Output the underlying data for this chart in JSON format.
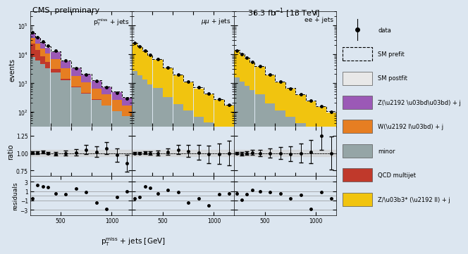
{
  "background_color": "#dce6f0",
  "title_left": "CMS  preliminary",
  "title_right": "36.3 fb$^{-1}$ [13 TeV]",
  "xlabel": "p$^{\\rm miss}_{\\rm T}$ + jets [GeV]",
  "panel_labels": [
    "p$_{\\rm T}^{\\rm miss}$ + jets",
    "$\\mu\\mu$ + jets",
    "ee + jets"
  ],
  "colors": {
    "Z_vv": "#9b59b6",
    "W_lv": "#e67e22",
    "minor": "#95a5a6",
    "QCD": "#c0392b",
    "Z_ll": "#f1c40f",
    "data": "#000000"
  },
  "xbins": [
    200,
    250,
    300,
    350,
    400,
    500,
    600,
    700,
    800,
    900,
    1000,
    1100,
    1200
  ],
  "panel0": {
    "Z_vv": [
      18000,
      14000,
      10000,
      7500,
      5500,
      2800,
      1600,
      950,
      580,
      360,
      230,
      150
    ],
    "W_lv": [
      12000,
      9000,
      7000,
      5000,
      3500,
      1800,
      1000,
      600,
      370,
      230,
      150,
      95
    ],
    "minor": [
      8000,
      6000,
      4500,
      3200,
      2300,
      1200,
      700,
      420,
      260,
      160,
      105,
      70
    ],
    "QCD": [
      15000,
      8000,
      4000,
      2000,
      800,
      200,
      50,
      20,
      8,
      3,
      1,
      1
    ],
    "Z_ll": [
      0,
      0,
      0,
      0,
      0,
      0,
      0,
      0,
      0,
      0,
      0,
      0
    ],
    "data": [
      55000,
      38000,
      27000,
      19000,
      13000,
      6000,
      3200,
      1900,
      1150,
      700,
      440,
      280
    ],
    "data_err_lo": [
      350,
      260,
      200,
      165,
      140,
      95,
      65,
      50,
      40,
      31,
      25,
      20
    ],
    "data_err_hi": [
      370,
      270,
      210,
      170,
      145,
      98,
      67,
      52,
      41,
      32,
      26,
      21
    ],
    "ratio": [
      1.01,
      1.01,
      1.02,
      1.0,
      0.99,
      1.0,
      1.01,
      1.05,
      1.02,
      1.07,
      0.97,
      0.85
    ],
    "ratio_err_lo": [
      0.02,
      0.02,
      0.02,
      0.02,
      0.03,
      0.04,
      0.05,
      0.07,
      0.08,
      0.09,
      0.1,
      0.12
    ],
    "ratio_err_hi": [
      0.02,
      0.02,
      0.02,
      0.02,
      0.03,
      0.04,
      0.05,
      0.07,
      0.08,
      0.09,
      0.1,
      0.12
    ],
    "residuals": [
      -0.5,
      2.2,
      2.0,
      1.8,
      0.5,
      0.3,
      1.5,
      0.8,
      -1.5,
      -2.8,
      -0.2,
      1.0
    ]
  },
  "panel1": {
    "Z_vv": [
      0,
      0,
      0,
      0,
      0,
      0,
      0,
      0,
      0,
      0,
      0,
      0
    ],
    "W_lv": [
      0,
      0,
      0,
      0,
      0,
      0,
      0,
      0,
      0,
      0,
      0,
      0
    ],
    "minor": [
      2500,
      1800,
      1300,
      900,
      650,
      320,
      180,
      110,
      67,
      42,
      27,
      17
    ],
    "QCD": [
      0,
      0,
      0,
      0,
      0,
      0,
      0,
      0,
      0,
      0,
      0,
      0
    ],
    "Z_ll": [
      22000,
      16000,
      12000,
      8500,
      6000,
      3000,
      1700,
      1000,
      610,
      380,
      240,
      155
    ],
    "data": [
      24000,
      18000,
      13000,
      9500,
      6700,
      3300,
      1900,
      1100,
      680,
      420,
      265,
      170
    ],
    "data_err_lo": [
      190,
      160,
      135,
      115,
      98,
      70,
      53,
      40,
      31,
      24,
      19,
      15
    ],
    "data_err_hi": [
      200,
      168,
      142,
      120,
      102,
      73,
      55,
      42,
      32,
      25,
      20,
      16
    ],
    "ratio": [
      1.0,
      1.0,
      1.01,
      1.0,
      1.0,
      1.02,
      1.05,
      1.03,
      1.01,
      0.98,
      0.99,
      1.0
    ],
    "ratio_err_lo": [
      0.02,
      0.02,
      0.02,
      0.03,
      0.04,
      0.05,
      0.07,
      0.09,
      0.11,
      0.13,
      0.15,
      0.18
    ],
    "ratio_err_hi": [
      0.02,
      0.02,
      0.02,
      0.03,
      0.04,
      0.05,
      0.07,
      0.09,
      0.11,
      0.13,
      0.15,
      0.18
    ],
    "residuals": [
      -0.5,
      -0.3,
      2.0,
      1.6,
      0.5,
      1.2,
      0.8,
      -1.5,
      -0.5,
      -2.0,
      0.3,
      0.5
    ]
  },
  "panel2": {
    "Z_vv": [
      0,
      0,
      0,
      0,
      0,
      0,
      0,
      0,
      0,
      0,
      0,
      0
    ],
    "W_lv": [
      0,
      0,
      0,
      0,
      0,
      0,
      0,
      0,
      0,
      0,
      0,
      0
    ],
    "minor": [
      1500,
      1100,
      800,
      560,
      400,
      195,
      110,
      65,
      40,
      25,
      16,
      10
    ],
    "QCD": [
      0,
      0,
      0,
      0,
      0,
      0,
      0,
      0,
      0,
      0,
      0,
      0
    ],
    "Z_ll": [
      12000,
      9000,
      6800,
      4800,
      3400,
      1700,
      970,
      580,
      355,
      220,
      140,
      90
    ],
    "data": [
      13000,
      10000,
      7600,
      5400,
      3800,
      1900,
      1070,
      640,
      390,
      240,
      152,
      98
    ],
    "data_err_lo": [
      138,
      120,
      105,
      88,
      75,
      53,
      39,
      31,
      24,
      18,
      14,
      12
    ],
    "data_err_hi": [
      143,
      125,
      109,
      92,
      78,
      55,
      41,
      32,
      25,
      19,
      15,
      12
    ],
    "ratio": [
      1.0,
      0.99,
      1.0,
      1.01,
      1.0,
      1.0,
      1.0,
      0.99,
      1.0,
      1.02,
      1.25,
      1.0
    ],
    "ratio_err_lo": [
      0.02,
      0.03,
      0.03,
      0.04,
      0.05,
      0.07,
      0.09,
      0.11,
      0.14,
      0.17,
      0.2,
      0.24
    ],
    "ratio_err_hi": [
      0.02,
      0.03,
      0.03,
      0.04,
      0.05,
      0.07,
      0.09,
      0.11,
      0.14,
      0.17,
      0.2,
      0.24
    ],
    "residuals": [
      0.5,
      -0.8,
      0.3,
      1.2,
      1.0,
      0.8,
      0.5,
      -0.5,
      0.2,
      -2.8,
      0.8,
      -0.5
    ]
  },
  "legend_items": [
    {
      "label": "data",
      "style": "marker",
      "color": "#000000"
    },
    {
      "label": "SM prefit",
      "style": "dashed",
      "color": "#000000"
    },
    {
      "label": "SM postfit",
      "style": "box",
      "color": "#e8e8e8"
    },
    {
      "label": "Z(\\u2192 \\u03bd\\u03bd) + j",
      "style": "box",
      "color": "#9b59b6"
    },
    {
      "label": "W(\\u2192 l\\u03bd) + j",
      "style": "box",
      "color": "#e67e22"
    },
    {
      "label": "minor",
      "style": "box",
      "color": "#95a5a6"
    },
    {
      "label": "QCD multijet",
      "style": "box",
      "color": "#c0392b"
    },
    {
      "label": "Z/\\u03b3* (\\u2192 ll) + j",
      "style": "box",
      "color": "#f1c40f"
    }
  ]
}
